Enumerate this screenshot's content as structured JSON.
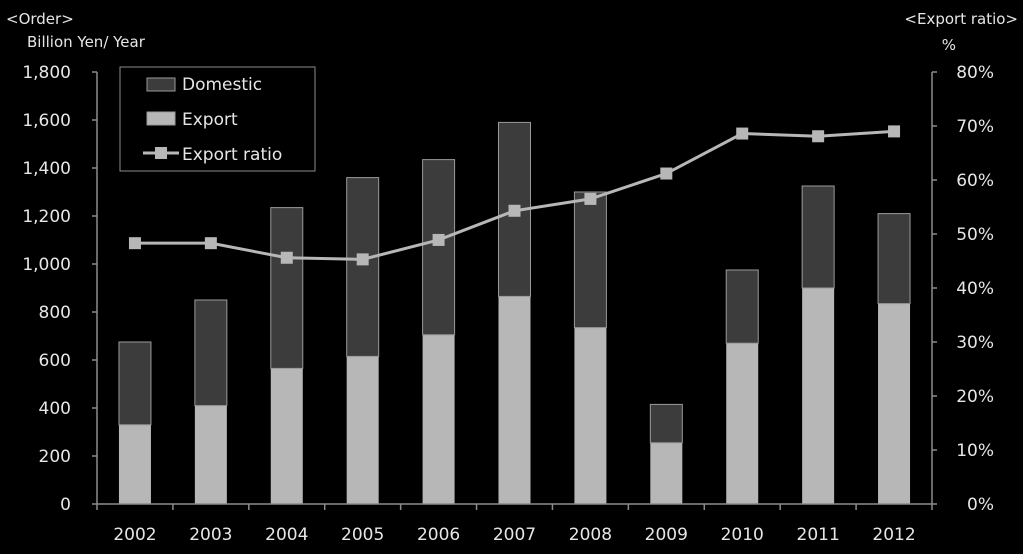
{
  "chart_data": {
    "type": "bar",
    "stacked": true,
    "categories": [
      "2002",
      "2003",
      "2004",
      "2005",
      "2006",
      "2007",
      "2008",
      "2009",
      "2010",
      "2011",
      "2012"
    ],
    "series": [
      {
        "name": "Export",
        "axis": "left",
        "kind": "bar",
        "color": "#b7b7b7",
        "values": [
          330,
          410,
          565,
          615,
          705,
          865,
          735,
          255,
          670,
          900,
          835
        ]
      },
      {
        "name": "Domestic",
        "axis": "left",
        "kind": "bar",
        "color": "#3c3c3c",
        "values": [
          345,
          440,
          670,
          745,
          730,
          725,
          565,
          160,
          305,
          425,
          375
        ]
      },
      {
        "name": "Export ratio",
        "axis": "right",
        "kind": "line",
        "color": "#b7b7b7",
        "values": [
          48.3,
          48.3,
          45.6,
          45.3,
          48.9,
          54.3,
          56.5,
          61.2,
          68.6,
          68.1,
          69.0
        ]
      }
    ],
    "left_axis": {
      "header_top": "<Order>",
      "header_bottom": "Billion  Yen/ Year",
      "ylim": [
        0,
        1800
      ],
      "ticks": [
        "0",
        "200",
        "400",
        "600",
        "800",
        "1,000",
        "1,200",
        "1,400",
        "1,600",
        "1,800"
      ]
    },
    "right_axis": {
      "header_top": "<Export ratio>",
      "header_bottom": "%",
      "ylim": [
        0,
        80
      ],
      "ticks": [
        "0%",
        "10%",
        "20%",
        "30%",
        "40%",
        "50%",
        "60%",
        "70%",
        "80%"
      ]
    },
    "legend": {
      "position": "top-left",
      "entries": [
        "Domestic",
        "Export",
        "Export ratio"
      ]
    },
    "grid": false
  },
  "colors": {
    "background": "#000000",
    "axis": "#8c8c8c",
    "text": "#e6e6e6",
    "bar_outline": "#9a9a9a"
  }
}
